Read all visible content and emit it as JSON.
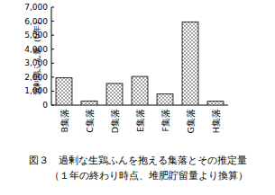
{
  "chart_data": {
    "type": "bar",
    "title": "図３　過剰な生鶏ふんを抱える集落とその推定量",
    "subtitle": "（１年の終わり時点、堆肥貯留量より換算）",
    "y_label": "過剰鶏ふん量（t/年）",
    "categories": [
      "B集落",
      "C集落",
      "D集落",
      "E集落",
      "F集落",
      "G集落",
      "H集落"
    ],
    "values": [
      1950,
      300,
      1550,
      2050,
      800,
      5950,
      280
    ],
    "color": "#000000",
    "ylim": [
      0,
      7000
    ],
    "yticks": [
      0,
      {
        "value": 1000,
        "label": "1,000"
      },
      {
        "value": 2000,
        "label": "2,000"
      },
      {
        "value": 3000,
        "label": "3,000"
      },
      {
        "value": 4000,
        "label": "4,000"
      },
      {
        "value": 5000,
        "label": "5,000"
      },
      {
        "value": 6000,
        "label": "6,000"
      },
      {
        "value": 7000,
        "label": "7,000"
      }
    ],
    "grid": false
  }
}
